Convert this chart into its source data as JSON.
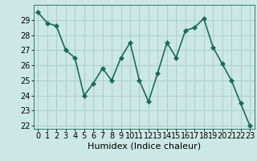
{
  "x": [
    0,
    1,
    2,
    3,
    4,
    5,
    6,
    7,
    8,
    9,
    10,
    11,
    12,
    13,
    14,
    15,
    16,
    17,
    18,
    19,
    20,
    21,
    22,
    23
  ],
  "y": [
    29.5,
    28.8,
    28.6,
    27.0,
    26.5,
    24.0,
    24.8,
    25.8,
    25.0,
    26.5,
    27.5,
    25.0,
    23.6,
    25.5,
    27.5,
    26.5,
    28.3,
    28.5,
    29.1,
    27.2,
    26.1,
    25.0,
    23.5,
    22.0
  ],
  "xlabel": "Humidex (Indice chaleur)",
  "ylim_min": 21.8,
  "ylim_max": 30.0,
  "yticks": [
    22,
    23,
    24,
    25,
    26,
    27,
    28,
    29
  ],
  "xticks": [
    0,
    1,
    2,
    3,
    4,
    5,
    6,
    7,
    8,
    9,
    10,
    11,
    12,
    13,
    14,
    15,
    16,
    17,
    18,
    19,
    20,
    21,
    22,
    23
  ],
  "line_color": "#1a6b5a",
  "marker_color": "#1a6b5a",
  "bg_color": "#cce8e4",
  "grid_color": "#aacfca",
  "xlabel_fontsize": 8,
  "tick_fontsize": 7,
  "line_width": 1.2,
  "marker_size": 3.0
}
